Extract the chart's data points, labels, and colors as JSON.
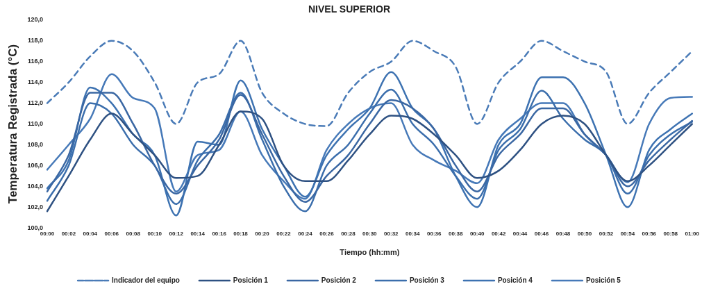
{
  "chart_data": {
    "type": "line",
    "title": "NIVEL SUPERIOR",
    "xlabel": "Tiempo (hh:mm)",
    "ylabel": "Temperatura Registrada (°C)",
    "categories": [
      "00:00",
      "00:02",
      "00:04",
      "00:06",
      "00:08",
      "00:10",
      "00:12",
      "00:14",
      "00:16",
      "00:18",
      "00:20",
      "00:22",
      "00:24",
      "00:26",
      "00:28",
      "00:30",
      "00:32",
      "00:34",
      "00:36",
      "00:38",
      "00:40",
      "00:42",
      "00:44",
      "00:46",
      "00:48",
      "00:50",
      "00:52",
      "00:54",
      "00:56",
      "00:58",
      "01:00"
    ],
    "ylim": [
      100,
      120
    ],
    "yticks": [
      {
        "value": 100,
        "label": "100,0"
      },
      {
        "value": 102,
        "label": "102,0"
      },
      {
        "value": 104,
        "label": "104,0"
      },
      {
        "value": 106,
        "label": "106,0"
      },
      {
        "value": 108,
        "label": "108,0"
      },
      {
        "value": 110,
        "label": "110,0"
      },
      {
        "value": 112,
        "label": "112,0"
      },
      {
        "value": 114,
        "label": "114,0"
      },
      {
        "value": 116,
        "label": "116,0"
      },
      {
        "value": 118,
        "label": "118,0"
      },
      {
        "value": 120,
        "label": "120,0"
      }
    ],
    "grid": false,
    "legend": "bottom",
    "marker": "none",
    "series": [
      {
        "name": "Indicador del equipo",
        "color": "#4a7bb7",
        "line_style": "dashed",
        "values": [
          112,
          114,
          116.5,
          118,
          117,
          114,
          110,
          114,
          114.8,
          118,
          113,
          111,
          110,
          109.8,
          113,
          115,
          116,
          118,
          117,
          115.5,
          110,
          114,
          116,
          118,
          117,
          116,
          115,
          110,
          113,
          115,
          117
        ]
      },
      {
        "name": "Posición 1",
        "color": "#2e5182",
        "line_style": "solid",
        "values": [
          101.6,
          105,
          108.5,
          111,
          109,
          107,
          104.8,
          105,
          108,
          111.2,
          110.5,
          106,
          104.5,
          104.5,
          106.5,
          109,
          110.8,
          110.5,
          109,
          107,
          104.8,
          105.5,
          107.5,
          110,
          110.8,
          110,
          107,
          104.5,
          106,
          108,
          110
        ]
      },
      {
        "name": "Posición 2",
        "color": "#3a67a3",
        "line_style": "solid",
        "values": [
          103.5,
          107,
          113,
          113,
          110,
          106,
          103.3,
          106,
          108.5,
          112.8,
          109,
          105,
          102.5,
          105,
          107,
          110,
          112.3,
          111.5,
          109.5,
          106,
          103.5,
          107,
          109,
          111.5,
          111.5,
          109,
          107,
          104,
          106.5,
          108.5,
          110.3
        ]
      },
      {
        "name": "Posición 3",
        "color": "#3b6eac",
        "line_style": "solid",
        "values": [
          102.6,
          106,
          112,
          111,
          108,
          106,
          102.3,
          106.5,
          109,
          113,
          108.5,
          104,
          101.6,
          106,
          108,
          111,
          113.3,
          110,
          108,
          105,
          102.8,
          107.5,
          109.5,
          113.2,
          110.5,
          108.5,
          107,
          103.3,
          107,
          109,
          110.2
        ]
      },
      {
        "name": "Posición 4",
        "color": "#3d72b1",
        "line_style": "solid",
        "values": [
          103.8,
          106.5,
          113.5,
          112,
          109,
          107,
          101.2,
          108.3,
          108,
          114.2,
          109.5,
          106,
          103,
          107,
          109.5,
          111.5,
          115,
          111.5,
          109.5,
          105,
          102,
          108,
          110,
          114.5,
          114.5,
          112,
          107,
          102,
          107.5,
          109.5,
          111
        ]
      },
      {
        "name": "Posición 5",
        "color": "#4679b8",
        "line_style": "solid",
        "values": [
          105.6,
          108,
          110.5,
          114.8,
          112.5,
          111.5,
          103.5,
          107,
          107.5,
          111.2,
          107,
          104.5,
          102.8,
          107.5,
          110,
          111.5,
          112,
          108,
          106.5,
          105.5,
          104.3,
          108.5,
          110.5,
          112,
          112,
          109,
          107,
          104.4,
          110,
          112.5,
          112.6
        ]
      }
    ]
  }
}
